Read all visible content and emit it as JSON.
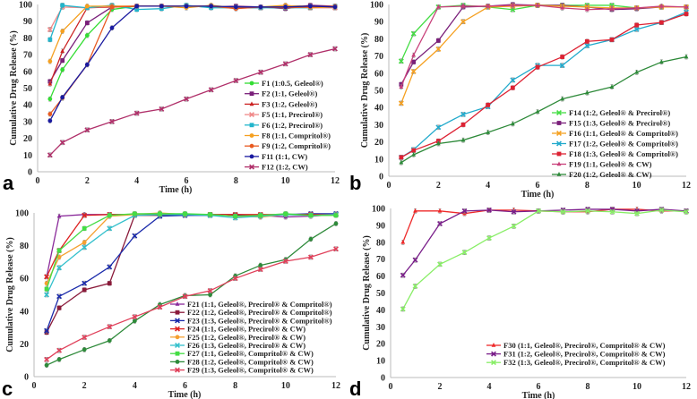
{
  "chart_data": [
    {
      "type": "line",
      "panel": "a",
      "xlabel": "Time (h)",
      "ylabel": "Cumulative Drug Release (%)",
      "xlim": [
        0,
        12
      ],
      "ylim": [
        0,
        100
      ],
      "xticks": [
        0,
        2,
        4,
        6,
        8,
        10,
        12
      ],
      "yticks": [
        0,
        10,
        20,
        30,
        40,
        50,
        60,
        70,
        80,
        90,
        100
      ],
      "legend_position": "center-right",
      "x": [
        0.5,
        1,
        2,
        3,
        4,
        5,
        6,
        7,
        8,
        9,
        10,
        11,
        12
      ],
      "series": [
        {
          "name": "F1 (1:0.5, Geleol®)",
          "color": "#33dd33",
          "marker": "circle",
          "values": [
            43.5,
            61,
            81.5,
            97,
            99,
            99,
            99,
            99,
            98,
            98,
            99,
            99,
            98
          ]
        },
        {
          "name": "F2 (1:1, Geleol®)",
          "color": "#7a1f7a",
          "marker": "square",
          "values": [
            54,
            66.5,
            89,
            98.5,
            99,
            99,
            99,
            98.5,
            99,
            98.5,
            97.5,
            99.5,
            99
          ]
        },
        {
          "name": "F3 (1:2, Geleol®)",
          "color": "#cc2222",
          "marker": "triangle",
          "values": [
            52.5,
            72,
            98,
            98.5,
            99,
            99,
            99,
            99,
            98,
            98,
            99,
            99,
            98.5
          ]
        },
        {
          "name": "F5 (1:1, Precirol®)",
          "color": "#f08888",
          "marker": "x",
          "values": [
            85,
            98.5,
            98,
            99,
            99,
            99,
            99,
            99,
            98,
            98,
            99,
            98,
            98
          ]
        },
        {
          "name": "F6 (1:2, Precirol®)",
          "color": "#22b5cc",
          "marker": "square",
          "values": [
            79,
            99.5,
            98,
            99.5,
            97,
            97.5,
            99.5,
            98,
            98,
            98,
            98,
            98,
            99
          ]
        },
        {
          "name": "F8 (1:1, Compritol®)",
          "color": "#f5a020",
          "marker": "circle",
          "values": [
            66,
            84,
            99,
            99,
            99,
            99,
            98,
            99.5,
            98,
            98.5,
            99.5,
            98,
            98.5
          ]
        },
        {
          "name": "F9 (1:2, Compritol®)",
          "color": "#e85a20",
          "marker": "circle",
          "values": [
            34.5,
            44,
            64,
            98.5,
            99,
            99,
            99,
            99,
            97.5,
            98.5,
            98,
            98.5,
            99
          ]
        },
        {
          "name": "F11 (1:1, CW)",
          "color": "#1a1aa0",
          "marker": "circle",
          "values": [
            30.5,
            44.5,
            64,
            86,
            99,
            99,
            99,
            99,
            98.5,
            98.5,
            98.5,
            99,
            98.5
          ]
        },
        {
          "name": "F12 (1:2, CW)",
          "color": "#b0306a",
          "marker": "x",
          "values": [
            10,
            17.5,
            25,
            30,
            35,
            37.5,
            43.5,
            49,
            54.5,
            59.5,
            64.5,
            70,
            73.5
          ]
        }
      ]
    },
    {
      "type": "line",
      "panel": "b",
      "xlabel": "Time (h)",
      "ylabel": "Cumulative Drug Release (%)",
      "xlim": [
        0,
        12
      ],
      "ylim": [
        0,
        100
      ],
      "xticks": [
        0,
        2,
        4,
        6,
        8,
        10,
        12
      ],
      "yticks": [
        0,
        10,
        20,
        30,
        40,
        50,
        60,
        70,
        80,
        90,
        100
      ],
      "legend_position": "center-right",
      "x": [
        0.5,
        1,
        2,
        3,
        4,
        5,
        6,
        7,
        8,
        9,
        10,
        11,
        12
      ],
      "series": [
        {
          "name": "F14 (1:2, Geleol® & Precirol®)",
          "color": "#44dd44",
          "marker": "x",
          "values": [
            67,
            83,
            98.5,
            99.5,
            98.5,
            97,
            99.5,
            99.5,
            99.5,
            99.5,
            98,
            98.5,
            98.5
          ]
        },
        {
          "name": "F15 (1:3, Geleol® & Precirol®)",
          "color": "#7a1f7a",
          "marker": "square",
          "values": [
            53.5,
            66.5,
            79,
            98.5,
            99,
            100,
            99.5,
            99.5,
            98.5,
            97,
            97.5,
            98.5,
            98.5
          ]
        },
        {
          "name": "F16 (1:1, Geleol® & Compritol®)",
          "color": "#f5a020",
          "marker": "x",
          "values": [
            42.5,
            61,
            74,
            90,
            98.5,
            99,
            99.5,
            99,
            98.5,
            98,
            98,
            98.5,
            98.5
          ]
        },
        {
          "name": "F17 (1:2, Geleol® & Compritol®)",
          "color": "#22aacc",
          "marker": "x",
          "values": [
            11,
            15.5,
            28.5,
            36,
            40.5,
            56,
            64.5,
            64.5,
            76,
            79.5,
            85.5,
            89.5,
            95.5
          ]
        },
        {
          "name": "F18 (1:3, Geleol® & Compritol®)",
          "color": "#dd2233",
          "marker": "square",
          "values": [
            11,
            15,
            20.5,
            30,
            41.5,
            51.5,
            63.5,
            69.5,
            78.5,
            79.5,
            88,
            89.5,
            94.5
          ]
        },
        {
          "name": "F19 (1:1, Geleol® & CW)",
          "color": "#c8407a",
          "marker": "triangle",
          "values": [
            52,
            70.5,
            98.5,
            99,
            99,
            99.5,
            99.5,
            98,
            97,
            97.5,
            98,
            99,
            98.5
          ]
        },
        {
          "name": "F20 (1:2, Geleol® & CW)",
          "color": "#2e8a3a",
          "marker": "triangle",
          "values": [
            8,
            12.5,
            19,
            21,
            25.5,
            30.5,
            37.5,
            45,
            48.5,
            52,
            60.5,
            66.5,
            69.5
          ]
        }
      ]
    },
    {
      "type": "line",
      "panel": "c",
      "xlabel": "Time (h)",
      "ylabel": "Cumulative Drug Release (%)",
      "xlim": [
        0,
        12
      ],
      "ylim": [
        0,
        100
      ],
      "xticks": [
        0,
        2,
        4,
        6,
        8,
        10,
        12
      ],
      "yticks": [
        0,
        20,
        40,
        60,
        80,
        100
      ],
      "legend_position": "lower-right",
      "x": [
        0.5,
        1,
        2,
        3,
        4,
        5,
        6,
        7,
        8,
        9,
        10,
        11,
        12
      ],
      "series": [
        {
          "name": "F21 (1:1, Geleol®, Precirol® & Compritol®)",
          "color": "#8a2a9a",
          "marker": "triangle",
          "values": [
            61,
            98,
            99,
            99,
            99,
            99,
            99,
            99,
            99,
            98.5,
            97.5,
            98,
            99
          ]
        },
        {
          "name": "F22 (1:2, Geleol®, Precirol® & Compritol®)",
          "color": "#8a1a3a",
          "marker": "square",
          "values": [
            27,
            42,
            53,
            57,
            98.5,
            98.5,
            98.5,
            99,
            98.5,
            98,
            99,
            99,
            99
          ]
        },
        {
          "name": "F23 (1:3, Geleol®, Precirol® & Compritol®)",
          "color": "#1a2aaa",
          "marker": "x",
          "values": [
            28,
            49,
            57,
            67,
            86,
            98,
            98.5,
            98.5,
            98.5,
            98.5,
            99,
            99.5,
            99.5
          ]
        },
        {
          "name": "F24 (1:1, Geleol®, Precirol® & CW)",
          "color": "#dd2222",
          "marker": "x",
          "values": [
            61,
            77,
            98.5,
            99,
            99,
            99,
            99,
            99,
            99,
            99,
            99,
            99,
            99
          ]
        },
        {
          "name": "F25 (1:2, Geleol®, Precirol® & CW)",
          "color": "#f5a030",
          "marker": "circle",
          "values": [
            57,
            73,
            82,
            98,
            99,
            100,
            99,
            99,
            98,
            97.5,
            99,
            98.5,
            98.5
          ]
        },
        {
          "name": "F26 (1:3, Geleol®, Precirol® & CW)",
          "color": "#33c0cc",
          "marker": "x",
          "values": [
            50,
            66.5,
            79,
            90.5,
            98.5,
            99,
            99,
            98.5,
            97,
            98,
            99,
            98.5,
            99
          ]
        },
        {
          "name": "F27 (1:1, Geleol®, Compritol® & CW)",
          "color": "#44dd44",
          "marker": "square",
          "values": [
            53.5,
            77,
            90.5,
            98.5,
            99.5,
            99.5,
            99.5,
            99,
            98,
            98.5,
            99.5,
            98.5,
            98.5
          ]
        },
        {
          "name": "F28 (1:2, Geleol®, Compritol® & CW)",
          "color": "#2e8a3a",
          "marker": "circle",
          "values": [
            7,
            10.5,
            16.5,
            22,
            34,
            44,
            49.5,
            50,
            61.5,
            68,
            71.5,
            84,
            93.5
          ]
        },
        {
          "name": "F29 (1:3, Geleol®, Compritol® & CW)",
          "color": "#e0405a",
          "marker": "x",
          "values": [
            10.5,
            16,
            24,
            30.5,
            36.5,
            42.5,
            49,
            52.5,
            60,
            65.5,
            70.5,
            73,
            78
          ]
        }
      ]
    },
    {
      "type": "line",
      "panel": "d",
      "xlabel": "Time (h)",
      "ylabel": "Cumulative Drug Release (%)",
      "xlim": [
        0,
        12
      ],
      "ylim": [
        0,
        100
      ],
      "xticks": [
        0,
        2,
        4,
        6,
        8,
        10,
        12
      ],
      "yticks": [
        0,
        10,
        20,
        30,
        40,
        50,
        60,
        70,
        80,
        90,
        100
      ],
      "legend_position": "lower-right",
      "x": [
        0.5,
        1,
        2,
        3,
        4,
        5,
        6,
        7,
        8,
        9,
        10,
        11,
        12
      ],
      "series": [
        {
          "name": "F30 (1:1, Geleol®, Precirol®, Compritol® & CW)",
          "color": "#ee2a2a",
          "marker": "triangle",
          "values": [
            80,
            98.5,
            98.5,
            97,
            99,
            99,
            98.5,
            98,
            98,
            99.5,
            99.5,
            98.5,
            98.5
          ]
        },
        {
          "name": "F31 (1:2, Geleol®, Precirol®, Compritol® & CW)",
          "color": "#7a1f8a",
          "marker": "x",
          "values": [
            60.5,
            69.5,
            91,
            98.5,
            99,
            98,
            98.5,
            99,
            99.5,
            99.5,
            98.5,
            99.5,
            98.5
          ]
        },
        {
          "name": "F32 (1:3, Geleol®, Precirol®, Compritol® & CW)",
          "color": "#88ee66",
          "marker": "x",
          "values": [
            40.5,
            54,
            67,
            74,
            82.5,
            89.5,
            98.5,
            98,
            98.5,
            98,
            97,
            99,
            98
          ]
        }
      ]
    }
  ]
}
